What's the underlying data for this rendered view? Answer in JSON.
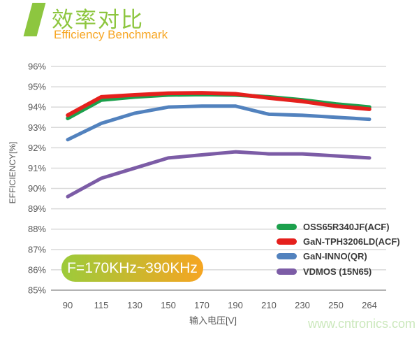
{
  "header": {
    "title": "效率对比",
    "subtitle": "Efficiency Benchmark"
  },
  "badge": {
    "label": "F=170KHz~390KHz"
  },
  "watermark": "www.cntronics.com",
  "colors": {
    "header_green": "#8DC63F",
    "header_orange": "#F7A623",
    "badge_gradient_start": "#9CCB3B",
    "badge_gradient_end": "#F6A522",
    "gridline": "#D9D9D9",
    "axis_line": "#B3B3B3",
    "tick_text": "#595959",
    "watermark_green": "#CBE8BC"
  },
  "chart_data": {
    "type": "line",
    "title": "效率对比 / Efficiency Benchmark",
    "xlabel": "输入电压[V]",
    "ylabel": "EFFICIENCY[%]",
    "categories": [
      90,
      115,
      130,
      150,
      170,
      190,
      210,
      230,
      250,
      264
    ],
    "x_tick_labels": [
      "90",
      "115",
      "130",
      "150",
      "170",
      "190",
      "210",
      "230",
      "250",
      "264"
    ],
    "y_tick_labels": [
      "96%",
      "95%",
      "94%",
      "93%",
      "92%",
      "91%",
      "90%",
      "89%",
      "88%",
      "87%",
      "86%",
      "85%"
    ],
    "ylim": [
      85,
      96
    ],
    "grid": true,
    "legend_position": "right-center",
    "annotation": "F=170KHz~390KHz",
    "series": [
      {
        "name": "OSS65R340JF(ACF)",
        "color": "#1CA04C",
        "width": 5.5,
        "values": [
          93.45,
          94.35,
          94.5,
          94.6,
          94.62,
          94.6,
          94.5,
          94.35,
          94.15,
          94.0
        ]
      },
      {
        "name": "GaN-TPH3206LD(ACF)",
        "color": "#E5201D",
        "width": 5.5,
        "values": [
          93.6,
          94.5,
          94.6,
          94.68,
          94.7,
          94.65,
          94.45,
          94.28,
          94.05,
          93.9
        ]
      },
      {
        "name": "GaN-INNO(QR)",
        "color": "#5282BE",
        "width": 5,
        "values": [
          92.4,
          93.2,
          93.7,
          94.0,
          94.05,
          94.05,
          93.65,
          93.6,
          93.5,
          93.4
        ]
      },
      {
        "name": "VDMOS (15N65)",
        "color": "#7C5CA6",
        "width": 5,
        "values": [
          89.6,
          90.5,
          91.0,
          91.5,
          91.65,
          91.8,
          91.7,
          91.7,
          91.6,
          91.5
        ]
      }
    ]
  }
}
